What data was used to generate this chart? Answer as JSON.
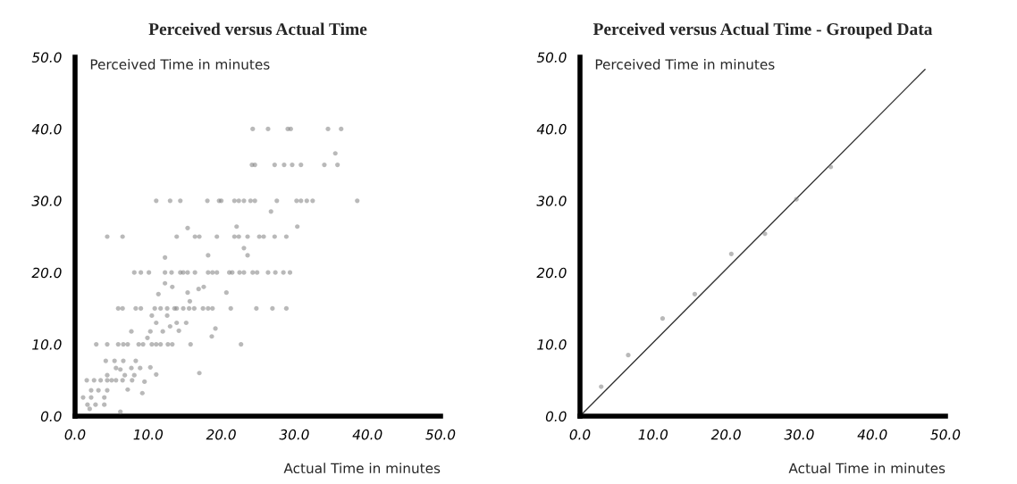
{
  "chart_data": [
    {
      "type": "scatter",
      "title": "Perceived versus Actual Time",
      "xlabel": "Actual Time in minutes",
      "ylabel": "Perceived Time in minutes",
      "marker": "circle",
      "grid": false,
      "legend": false,
      "xlim": [
        0,
        50
      ],
      "ylim": [
        0,
        50
      ],
      "xticks": [
        {
          "value": 0,
          "label": "0.0"
        },
        {
          "value": 10,
          "label": "10.0"
        },
        {
          "value": 20,
          "label": "20.0"
        },
        {
          "value": 30,
          "label": "30.0"
        },
        {
          "value": 40,
          "label": "40.0"
        },
        {
          "value": 50,
          "label": "50.0"
        }
      ],
      "yticks": [
        {
          "value": 0,
          "label": "0.0"
        },
        {
          "value": 10,
          "label": "10.0"
        },
        {
          "value": 20,
          "label": "20.0"
        },
        {
          "value": 30,
          "label": "30.0"
        },
        {
          "value": 40,
          "label": "40.0"
        },
        {
          "value": 50,
          "label": "50.0"
        }
      ],
      "series": [
        {
          "color": "#808080",
          "x": [
            24.3,
            26.4,
            29.1,
            29.5,
            34.6,
            36.4,
            24.2,
            24.6,
            27.3,
            28.6,
            29.7,
            30.9,
            34.1,
            35.9,
            35.6,
            11.1,
            13.0,
            14.4,
            18.1,
            19.7,
            20.0,
            21.8,
            22.4,
            23.1,
            24.0,
            24.6,
            27.6,
            30.3,
            30.9,
            31.7,
            32.5,
            38.6,
            26.8,
            4.4,
            6.5,
            13.9,
            16.4,
            17.0,
            19.4,
            21.8,
            22.4,
            23.6,
            25.2,
            25.8,
            27.3,
            28.9,
            15.4,
            22.1,
            30.4,
            23.1,
            12.3,
            18.2,
            23.6,
            8.1,
            9.0,
            10.1,
            12.3,
            13.2,
            14.4,
            14.8,
            15.4,
            16.4,
            18.2,
            18.8,
            19.4,
            21.1,
            21.5,
            22.5,
            23.1,
            24.3,
            24.9,
            26.4,
            27.4,
            28.5,
            29.4,
            12.3,
            13.3,
            11.4,
            15.4,
            16.9,
            17.6,
            20.7,
            15.7,
            5.9,
            6.5,
            8.3,
            9.0,
            10.9,
            11.7,
            12.6,
            13.6,
            13.9,
            14.8,
            15.6,
            16.3,
            17.5,
            18.2,
            18.8,
            21.3,
            24.8,
            27.0,
            28.9,
            10.5,
            12.6,
            11.1,
            13.9,
            15.2,
            13.0,
            7.7,
            10.3,
            12.0,
            14.2,
            19.2,
            18.7,
            9.9,
            2.9,
            4.4,
            5.9,
            6.6,
            7.2,
            8.7,
            9.3,
            10.5,
            11.1,
            11.7,
            12.7,
            13.3,
            15.8,
            22.7,
            4.2,
            5.4,
            6.6,
            8.3,
            5.6,
            6.2,
            7.7,
            8.9,
            10.3,
            4.4,
            6.8,
            8.1,
            11.1,
            17.0,
            1.6,
            2.6,
            3.5,
            4.4,
            5.0,
            5.6,
            6.5,
            7.8,
            9.5,
            2.2,
            3.2,
            4.4,
            7.2,
            9.2,
            1.1,
            2.2,
            4.0,
            1.7,
            2.8,
            4.0,
            2.0,
            6.2
          ],
          "values": [
            40,
            40,
            40,
            40,
            40,
            40,
            35,
            35,
            35,
            35,
            35,
            35,
            35,
            35,
            36.6,
            30,
            30,
            30,
            30,
            30,
            30,
            30,
            30,
            30,
            30,
            30,
            30,
            30,
            30,
            30,
            30,
            30,
            28.5,
            25,
            25,
            25,
            25,
            25,
            25,
            25,
            25,
            25,
            25,
            25,
            25,
            25,
            26.2,
            26.4,
            26.4,
            23.4,
            22.1,
            22.4,
            22.4,
            20,
            20,
            20,
            20,
            20,
            20,
            20,
            20,
            20,
            20,
            20,
            20,
            20,
            20,
            20,
            20,
            20,
            20,
            20,
            20,
            20,
            20,
            18.5,
            18.0,
            17.0,
            17.2,
            17.7,
            18.0,
            17.2,
            16.0,
            15,
            15,
            15,
            15,
            15,
            15,
            15,
            15,
            15,
            15,
            15,
            15,
            15,
            15,
            15,
            15,
            15,
            15,
            15,
            14.0,
            14.0,
            13.0,
            13.0,
            13.0,
            12.5,
            11.8,
            11.8,
            11.8,
            11.9,
            12.2,
            11.1,
            10.9,
            10,
            10,
            10,
            10,
            10,
            10,
            10,
            10,
            10,
            10,
            10,
            10,
            10,
            10,
            7.7,
            7.7,
            7.7,
            7.7,
            6.7,
            6.5,
            6.7,
            6.7,
            6.8,
            5.7,
            5.7,
            5.7,
            5.8,
            6.0,
            5,
            5,
            5,
            5,
            5,
            5,
            5,
            5,
            4.8,
            3.6,
            3.6,
            3.6,
            3.7,
            3.2,
            2.6,
            2.6,
            2.6,
            1.6,
            1.6,
            1.6,
            1.0,
            0.6
          ]
        }
      ]
    },
    {
      "type": "scatter",
      "title": "Perceived versus Actual Time - Grouped Data",
      "xlabel": "Actual Time in minutes",
      "ylabel": "Perceived Time in minutes",
      "marker": "circle",
      "grid": false,
      "legend": false,
      "xlim": [
        0,
        50
      ],
      "ylim": [
        0,
        50
      ],
      "xticks": [
        {
          "value": 0,
          "label": "0.0"
        },
        {
          "value": 10,
          "label": "10.0"
        },
        {
          "value": 20,
          "label": "20.0"
        },
        {
          "value": 30,
          "label": "30.0"
        },
        {
          "value": 40,
          "label": "40.0"
        },
        {
          "value": 50,
          "label": "50.0"
        }
      ],
      "yticks": [
        {
          "value": 0,
          "label": "0.0"
        },
        {
          "value": 10,
          "label": "10.0"
        },
        {
          "value": 20,
          "label": "20.0"
        },
        {
          "value": 30,
          "label": "30.0"
        },
        {
          "value": 40,
          "label": "40.0"
        },
        {
          "value": 50,
          "label": "50.0"
        }
      ],
      "series": [
        {
          "color": "#808080",
          "x": [
            2.9,
            6.6,
            11.3,
            15.7,
            20.7,
            25.3,
            29.6,
            34.3
          ],
          "values": [
            4.1,
            8.5,
            13.6,
            17.0,
            22.6,
            25.4,
            30.2,
            34.7
          ]
        },
        {
          "type": "line",
          "color": "#333333",
          "marker": "none",
          "x": [
            0,
            47.2
          ],
          "values": [
            0,
            48.3
          ]
        }
      ]
    }
  ]
}
